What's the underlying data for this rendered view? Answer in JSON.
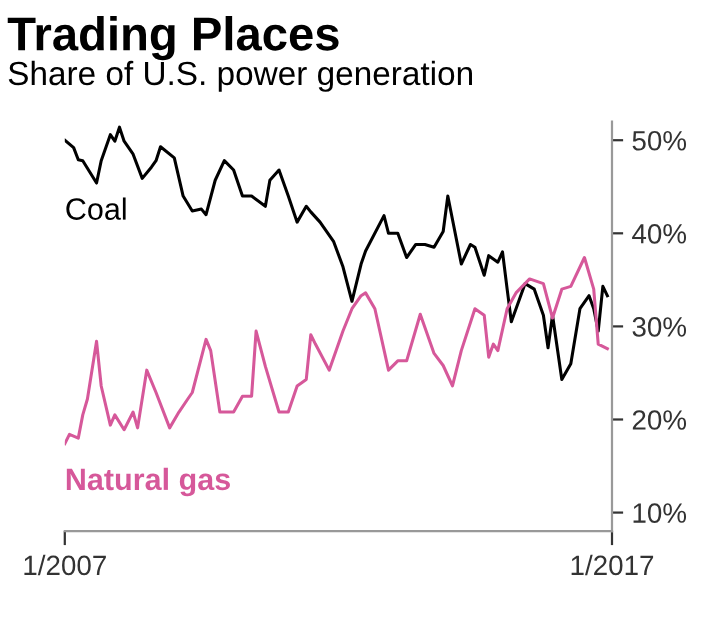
{
  "chart_data": {
    "type": "line",
    "title": "Trading Places",
    "subtitle": "Share of U.S. power generation",
    "xlim": [
      "2007-01",
      "2017-01"
    ],
    "xticks": [
      {
        "value": "2007-01",
        "label": "1/2007"
      },
      {
        "value": "2017-01",
        "label": "1/2017"
      }
    ],
    "ylim": [
      8,
      52
    ],
    "yticks": [
      {
        "value": 10,
        "label": "10%"
      },
      {
        "value": 20,
        "label": "20%"
      },
      {
        "value": 30,
        "label": "30%"
      },
      {
        "value": 40,
        "label": "40%"
      },
      {
        "value": 50,
        "label": "50%"
      }
    ],
    "grid": false,
    "legend": false,
    "marker": "none",
    "line_style": "solid",
    "series": [
      {
        "name": "Coal",
        "color": "#000000",
        "x": [
          "2007-01",
          "2007-03",
          "2007-04",
          "2007-05",
          "2007-08",
          "2007-09",
          "2007-11",
          "2007-12",
          "2008-01",
          "2008-02",
          "2008-04",
          "2008-06",
          "2008-08",
          "2008-09",
          "2008-10",
          "2009-01",
          "2009-03",
          "2009-05",
          "2009-07",
          "2009-08",
          "2009-10",
          "2009-12",
          "2010-02",
          "2010-04",
          "2010-06",
          "2010-09",
          "2010-10",
          "2010-12",
          "2011-02",
          "2011-04",
          "2011-06",
          "2011-07",
          "2011-09",
          "2011-12",
          "2012-02",
          "2012-04",
          "2012-06",
          "2012-07",
          "2012-11",
          "2012-12",
          "2013-02",
          "2013-04",
          "2013-06",
          "2013-08",
          "2013-10",
          "2013-12",
          "2014-01",
          "2014-04",
          "2014-06",
          "2014-07",
          "2014-09",
          "2014-10",
          "2014-12",
          "2015-01",
          "2015-02",
          "2015-03",
          "2015-06",
          "2015-08",
          "2015-10",
          "2015-11",
          "2015-12",
          "2016-02",
          "2016-04",
          "2016-06",
          "2016-08",
          "2016-09",
          "2016-10",
          "2016-11",
          "2016-12"
        ],
        "values": [
          50.0,
          49.2,
          47.9,
          47.8,
          45.4,
          47.8,
          50.6,
          49.9,
          51.4,
          49.9,
          48.5,
          45.9,
          47.1,
          47.8,
          49.3,
          48.1,
          44.0,
          42.4,
          42.6,
          42.0,
          45.7,
          47.8,
          46.8,
          44.0,
          44.0,
          42.9,
          45.7,
          46.8,
          44.0,
          41.2,
          42.9,
          42.3,
          41.2,
          39.1,
          36.4,
          32.7,
          36.7,
          38.1,
          41.9,
          40.0,
          40.0,
          37.4,
          38.8,
          38.8,
          38.5,
          40.2,
          44.0,
          36.7,
          38.8,
          38.5,
          35.5,
          37.6,
          36.9,
          38.0,
          34.0,
          30.5,
          34.6,
          34.0,
          31.2,
          27.7,
          31.2,
          24.3,
          26.0,
          31.9,
          33.3,
          31.9,
          29.5,
          34.3,
          33.3
        ]
      },
      {
        "name": "Natural gas",
        "color": "#d6589a",
        "x": [
          "2007-01",
          "2007-02",
          "2007-04",
          "2007-05",
          "2007-06",
          "2007-08",
          "2007-09",
          "2007-11",
          "2007-12",
          "2008-02",
          "2008-04",
          "2008-05",
          "2008-07",
          "2008-09",
          "2008-12",
          "2009-02",
          "2009-04",
          "2009-05",
          "2009-08",
          "2009-09",
          "2009-11",
          "2010-02",
          "2010-04",
          "2010-06",
          "2010-07",
          "2010-09",
          "2010-12",
          "2011-02",
          "2011-04",
          "2011-06",
          "2011-07",
          "2011-08",
          "2011-11",
          "2012-02",
          "2012-04",
          "2012-06",
          "2012-07",
          "2012-09",
          "2012-12",
          "2013-02",
          "2013-04",
          "2013-07",
          "2013-10",
          "2013-12",
          "2014-02",
          "2014-04",
          "2014-07",
          "2014-09",
          "2014-10",
          "2014-11",
          "2014-12",
          "2015-02",
          "2015-04",
          "2015-07",
          "2015-10",
          "2015-12",
          "2016-02",
          "2016-04",
          "2016-07",
          "2016-09",
          "2016-10",
          "2016-12"
        ],
        "values": [
          17.4,
          18.4,
          18.0,
          20.5,
          22.2,
          28.4,
          23.6,
          19.4,
          20.5,
          18.9,
          20.8,
          19.1,
          25.3,
          22.9,
          19.1,
          20.8,
          22.2,
          22.9,
          28.6,
          27.4,
          20.8,
          20.8,
          22.5,
          22.5,
          29.5,
          25.7,
          20.8,
          20.8,
          23.6,
          24.3,
          29.1,
          28.1,
          25.3,
          29.5,
          31.9,
          33.3,
          33.6,
          31.9,
          25.3,
          26.3,
          26.3,
          31.3,
          27.1,
          25.8,
          23.6,
          27.4,
          31.9,
          31.2,
          26.7,
          28.1,
          27.4,
          31.9,
          33.6,
          35.1,
          34.6,
          30.9,
          34.0,
          34.3,
          37.4,
          34.0,
          28.1,
          27.6
        ]
      }
    ]
  }
}
